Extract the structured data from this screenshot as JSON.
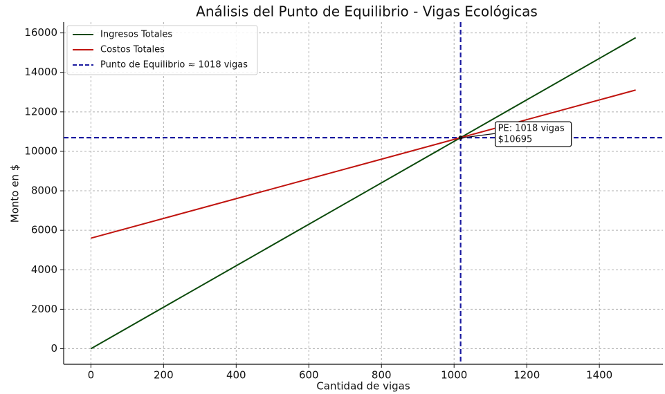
{
  "chart_data": {
    "type": "line",
    "title": "Análisis del Punto de Equilibrio - Vigas Ecológicas",
    "xlabel": "Cantidad de vigas",
    "ylabel": "Monto en $",
    "x": [
      0,
      1500
    ],
    "series": [
      {
        "name": "Ingresos Totales",
        "color": "#0b4a0b",
        "values": [
          0,
          15759
        ]
      },
      {
        "name": "Costos Totales",
        "color": "#c0140f",
        "values": [
          5600,
          13107
        ]
      }
    ],
    "break_even": {
      "name": "Punto de Equilibrio ≈ 1018 vigas",
      "color": "#1a1aa0",
      "x": 1018,
      "y": 10695
    },
    "annotation": [
      "PE: 1018 vigas",
      "$10695"
    ],
    "xlim": [
      -75,
      1575
    ],
    "ylim": [
      -788,
      16547
    ],
    "xticks": [
      0,
      200,
      400,
      600,
      800,
      1000,
      1200,
      1400
    ],
    "yticks": [
      0,
      2000,
      4000,
      6000,
      8000,
      10000,
      12000,
      14000,
      16000
    ],
    "grid": true,
    "legend": "upper left"
  }
}
